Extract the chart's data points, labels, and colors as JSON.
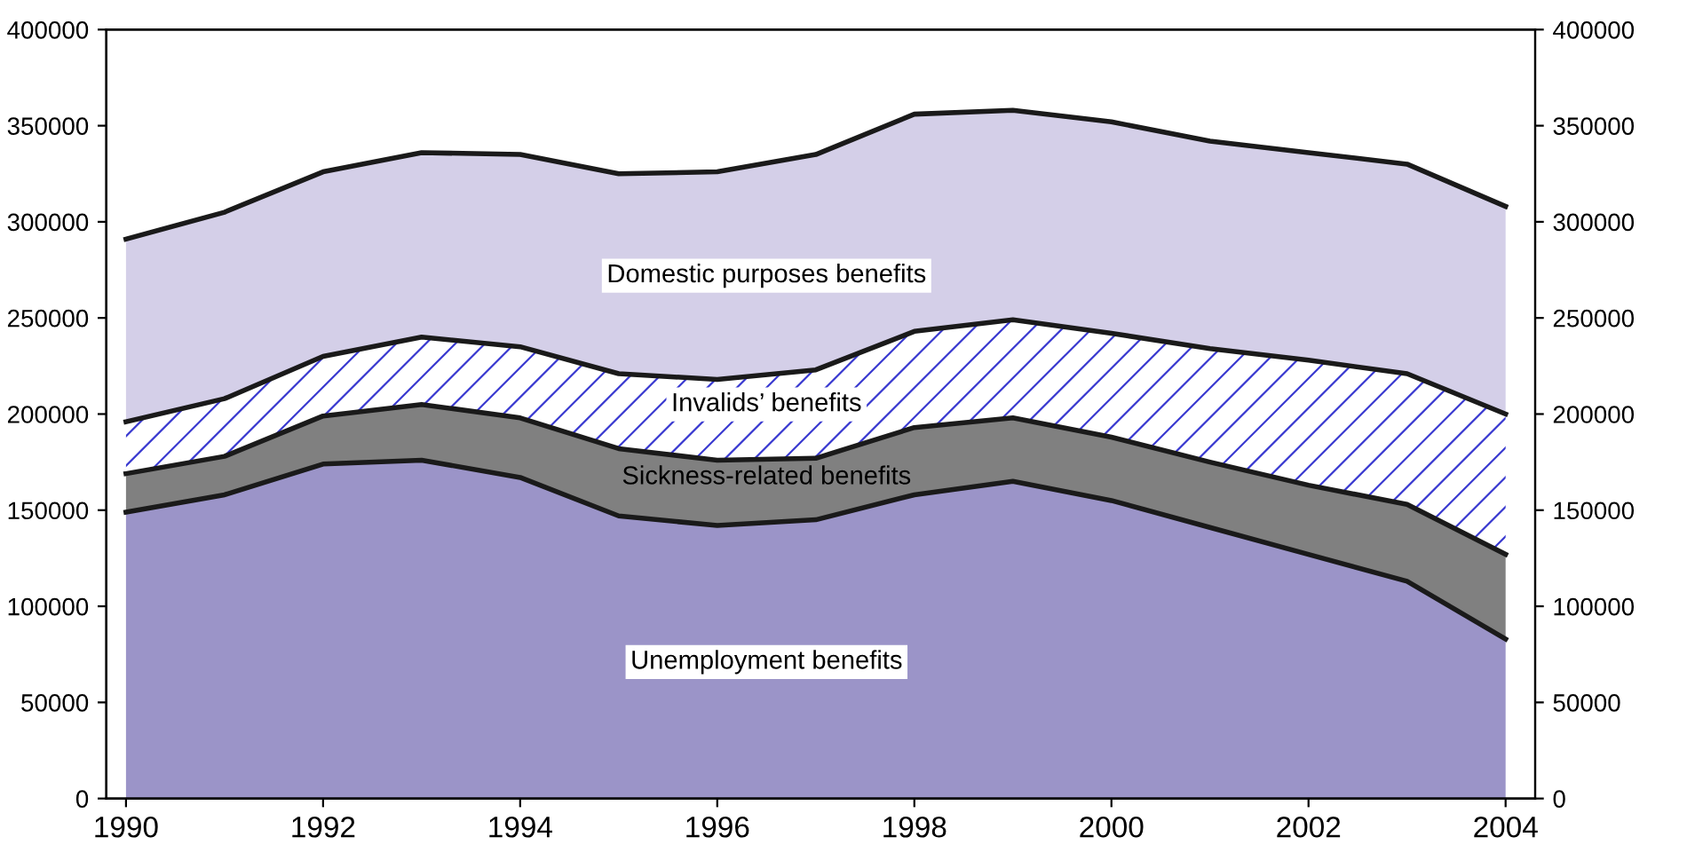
{
  "chart_data": {
    "type": "area",
    "stacked": true,
    "x": [
      1990,
      1991,
      1992,
      1993,
      1994,
      1995,
      1996,
      1997,
      1998,
      1999,
      2000,
      2001,
      2002,
      2003,
      2004
    ],
    "series": [
      {
        "name": "Unemployment benefits",
        "color": "#9b94c8",
        "values": [
          149000,
          158000,
          174000,
          176000,
          167000,
          147000,
          142000,
          145000,
          158000,
          165000,
          155000,
          141000,
          127000,
          113000,
          83000
        ]
      },
      {
        "name": "Sickness-related benefits",
        "color": "#808080",
        "values": [
          20000,
          20000,
          25000,
          29000,
          31000,
          35000,
          34000,
          32000,
          35000,
          33000,
          33000,
          34000,
          36000,
          40000,
          44000
        ]
      },
      {
        "name": "Invalids’ benefits",
        "color": "#3a3ad0",
        "values": [
          27000,
          30000,
          31000,
          35000,
          37000,
          39000,
          42000,
          46000,
          50000,
          51000,
          54000,
          59000,
          65000,
          68000,
          73000
        ]
      },
      {
        "name": "Domestic purposes benefits",
        "color": "#d4cfe8",
        "values": [
          95000,
          97000,
          96000,
          96000,
          100000,
          104000,
          108000,
          112000,
          113000,
          109000,
          110000,
          108000,
          108000,
          109000,
          108000
        ]
      }
    ],
    "xlim": [
      1989.8,
      2004.3
    ],
    "xticks": [
      1990,
      1992,
      1994,
      1996,
      1998,
      2000,
      2002,
      2004
    ],
    "ylim": [
      0,
      400000
    ],
    "yticks": [
      0,
      50000,
      100000,
      150000,
      200000,
      250000,
      300000,
      350000,
      400000
    ],
    "y2lim": [
      0,
      400000
    ],
    "y2ticks": [
      0,
      50000,
      100000,
      150000,
      200000,
      250000,
      300000,
      350000,
      400000
    ],
    "grid": false,
    "legend": false
  }
}
